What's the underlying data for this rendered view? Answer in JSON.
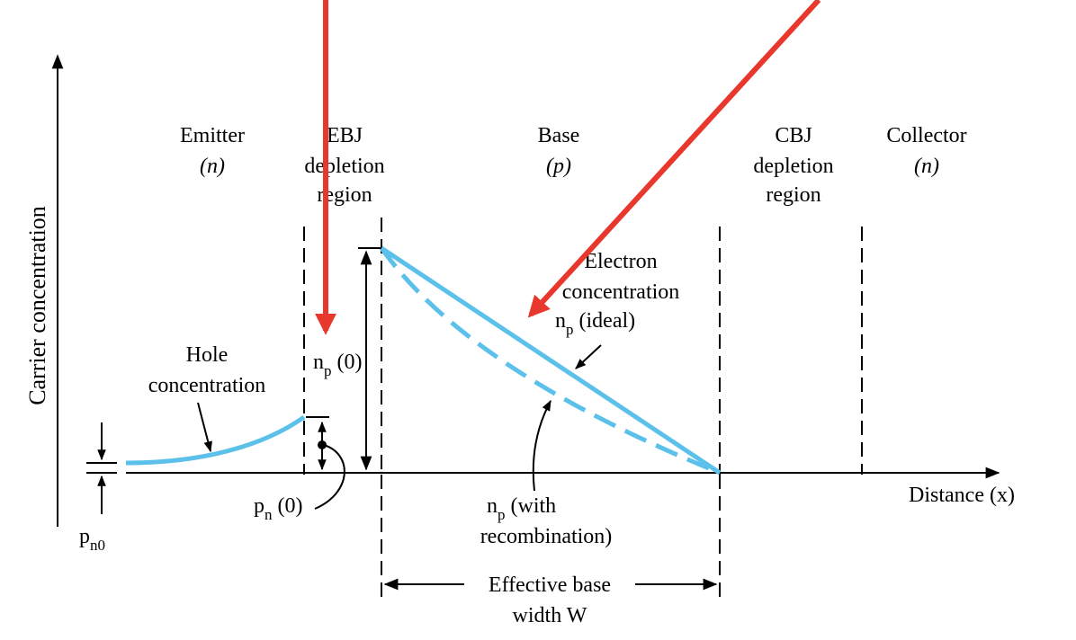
{
  "colors": {
    "curve": "#5bc0ea",
    "arrow_red": "#e8372c",
    "ink": "#000000",
    "background": "#ffffff"
  },
  "axes": {
    "y_label": "Carrier concentration",
    "x_label_text": "Distance ",
    "x_label_var": "(x)"
  },
  "regions": {
    "emitter": {
      "line1": "Emitter",
      "line2": "(n)"
    },
    "ebj": {
      "line1": "EBJ",
      "line2": "depletion",
      "line3": "region"
    },
    "base": {
      "line1": "Base",
      "line2": "(p)"
    },
    "cbj": {
      "line1": "CBJ",
      "line2": "depletion",
      "line3": "region"
    },
    "collector": {
      "line1": "Collector",
      "line2": "(n)"
    }
  },
  "labels": {
    "hole_line1": "Hole",
    "hole_line2": "concentration",
    "np0_var": "n",
    "np0_sub": "p",
    "np0_arg": " (0)",
    "pn0_var": "p",
    "pn0_sub": "n",
    "pn0_arg": " (0)",
    "pn_eq_var": "p",
    "pn_eq_sub": "n0",
    "electron_line1": "Electron",
    "electron_line2": "concentration",
    "ideal_var": "n",
    "ideal_sub": "p",
    "ideal_text": " (ideal)",
    "recomb_var": "n",
    "recomb_sub": "p",
    "recomb_text": " (with",
    "recomb_line2": "recombination)",
    "width_line1": "Effective base",
    "width_line2": "width ",
    "width_var": "W"
  }
}
